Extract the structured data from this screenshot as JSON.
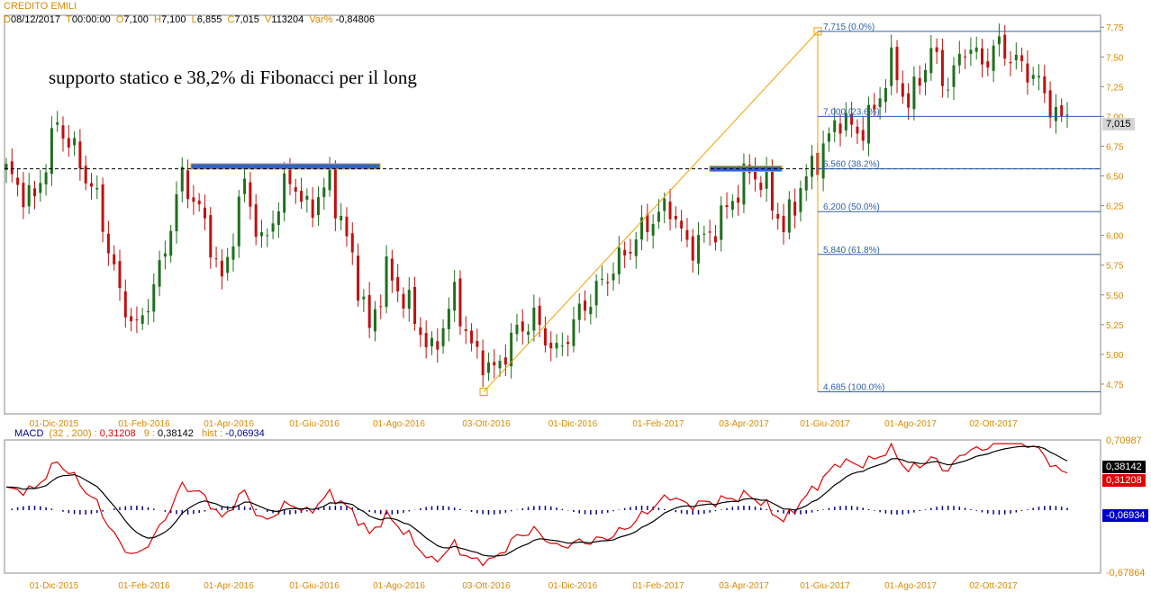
{
  "instrument": "CREDITO EMILI",
  "quote": {
    "d_key": "D",
    "d_val": "08/12/2017",
    "t_key": "T",
    "t_val": "00:00:00",
    "o_key": "O",
    "o_val": "7,100",
    "h_key": "H",
    "h_val": "7,100",
    "l_key": "L",
    "l_val": "6,855",
    "c_key": "C",
    "c_val": "7,015",
    "v_key": "V",
    "v_val": "113204",
    "var_key": "Var%",
    "var_val": "-0,84806"
  },
  "annotation": "supporto statico e 38,2% di Fibonacci per il long",
  "chart_data": [
    {
      "type": "candlestick",
      "price_axis": {
        "ticks": [
          "7,75",
          "7,50",
          "7,25",
          "7,00",
          "6,75",
          "6,50",
          "6,25",
          "6,00",
          "5,75",
          "5,50",
          "5,25",
          "5,00",
          "4,75"
        ],
        "range": [
          4.5,
          7.85
        ],
        "last_value_label": "7,015",
        "last_value": 7.015
      },
      "date_ticks": [
        "01-Dic-2015",
        "01-Feb-2016",
        "01-Apr-2016",
        "01-Giu-2016",
        "01-Ago-2016",
        "03-Ott-2016",
        "01-Dic-2016",
        "01-Feb-2017",
        "03-Apr-2017",
        "01-Giu-2017",
        "01-Ago-2017",
        "02-Ott-2017"
      ],
      "price_path_anchors": [
        [
          0,
          6.55
        ],
        [
          2,
          6.4
        ],
        [
          5,
          6.3
        ],
        [
          9,
          6.95
        ],
        [
          12,
          6.7
        ],
        [
          16,
          6.3
        ],
        [
          20,
          5.5
        ],
        [
          23,
          5.2
        ],
        [
          27,
          5.7
        ],
        [
          31,
          6.5
        ],
        [
          35,
          6.1
        ],
        [
          38,
          5.6
        ],
        [
          42,
          6.45
        ],
        [
          45,
          5.9
        ],
        [
          50,
          6.5
        ],
        [
          53,
          6.2
        ],
        [
          57,
          6.45
        ],
        [
          61,
          5.8
        ],
        [
          64,
          5.2
        ],
        [
          67,
          5.7
        ],
        [
          71,
          5.4
        ],
        [
          75,
          5.0
        ],
        [
          79,
          5.5
        ],
        [
          82,
          5.05
        ],
        [
          86,
          4.85
        ],
        [
          90,
          5.2
        ],
        [
          93,
          5.3
        ],
        [
          97,
          5.0
        ],
        [
          101,
          5.35
        ],
        [
          105,
          5.6
        ],
        [
          109,
          5.85
        ],
        [
          113,
          6.1
        ],
        [
          117,
          6.25
        ],
        [
          120,
          5.9
        ],
        [
          124,
          6.0
        ],
        [
          128,
          6.3
        ],
        [
          131,
          6.55
        ],
        [
          134,
          6.4
        ],
        [
          137,
          6.05
        ],
        [
          140,
          6.4
        ],
        [
          143,
          6.65
        ],
        [
          147,
          7.0
        ],
        [
          150,
          6.85
        ],
        [
          153,
          7.05
        ],
        [
          156,
          7.45
        ],
        [
          159,
          7.1
        ],
        [
          163,
          7.55
        ],
        [
          166,
          7.25
        ],
        [
          169,
          7.6
        ],
        [
          172,
          7.45
        ],
        [
          175,
          7.6
        ],
        [
          178,
          7.45
        ],
        [
          181,
          7.35
        ],
        [
          184,
          7.1
        ],
        [
          186,
          6.95
        ],
        [
          187,
          7.015
        ]
      ],
      "support_zones": [
        {
          "from": "01-Mar-2016",
          "to": "01-Lug-2016",
          "level": 6.58
        },
        {
          "from": "01-Mar-2017",
          "to": "01-Mag-2017",
          "level": 6.56
        }
      ],
      "support_line_level": 6.56,
      "fib_swing": {
        "low": 4.685,
        "high": 7.715
      },
      "fib_levels": [
        {
          "label": "7,715 (0.0%)",
          "value": 7.715
        },
        {
          "label": "7,000 (23.6%)",
          "value": 7.0
        },
        {
          "label": "6,560 (38.2%)",
          "value": 6.56
        },
        {
          "label": "6,200 (50.0%)",
          "value": 6.2
        },
        {
          "label": "5,840 (61.8%)",
          "value": 5.84
        },
        {
          "label": "4,685 (100.0%)",
          "value": 4.685
        }
      ]
    },
    {
      "type": "line",
      "indicator": "MACD",
      "params": "(32 , 200)",
      "series": [
        {
          "name": "MACD",
          "value_label": "0,31208",
          "color": "#e00000"
        },
        {
          "name": "9",
          "value_label": "0,38142",
          "color": "#000000"
        },
        {
          "name": "hist",
          "value_label": "-0,06934",
          "color": "#00008b"
        }
      ],
      "axis_labels": [
        "0,70987",
        "-0,67864"
      ],
      "range": [
        -0.67864,
        0.70987
      ]
    }
  ],
  "colors": {
    "axis_text": "#d98a00",
    "fib_line": "#2b5fa8",
    "support_zone": "#2f62d6",
    "up_candle": "#1f6f1f",
    "down_candle": "#c01010",
    "trend_line": "#f0a000"
  }
}
